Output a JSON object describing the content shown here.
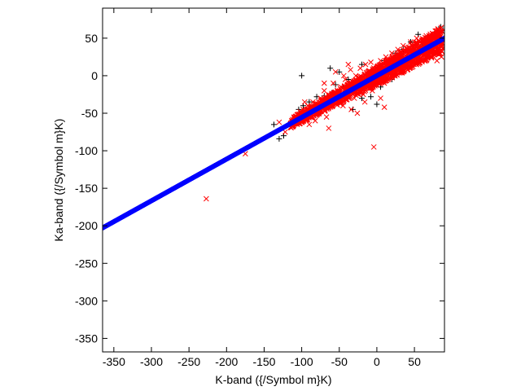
{
  "chart_data": {
    "type": "scatter",
    "title": "",
    "xlabel": "K-band ({/Symbol m}K)",
    "ylabel": "Ka-band ({/Symbol m}K)",
    "xlim": [
      -365,
      90
    ],
    "ylim": [
      -368,
      90
    ],
    "xticks": [
      -350,
      -300,
      -250,
      -200,
      -150,
      -100,
      -50,
      0,
      50
    ],
    "yticks": [
      50,
      0,
      -50,
      -100,
      -150,
      -200,
      -250,
      -300,
      -350
    ],
    "grid": false,
    "legend": "none",
    "series": [
      {
        "marker": "plus",
        "color": "#000000",
        "points": [
          [
            -137,
            -65
          ],
          [
            -130,
            -84
          ],
          [
            -124,
            -80
          ],
          [
            -110,
            -64
          ],
          [
            -104,
            -45
          ],
          [
            -98,
            -40
          ],
          [
            -90,
            -35
          ],
          [
            -85,
            -42
          ],
          [
            -80,
            -28
          ],
          [
            -75,
            -50
          ],
          [
            -70,
            -27
          ],
          [
            -60,
            -23
          ],
          [
            -55,
            -12
          ],
          [
            -100,
            0
          ],
          [
            -62,
            10
          ],
          [
            -45,
            -15
          ],
          [
            -38,
            -5
          ],
          [
            -32,
            -45
          ],
          [
            -28,
            -20
          ],
          [
            -20,
            -30
          ],
          [
            -15,
            -10
          ],
          [
            -8,
            -28
          ],
          [
            -2,
            5
          ],
          [
            5,
            -15
          ],
          [
            10,
            20
          ],
          [
            15,
            2
          ],
          [
            20,
            -5
          ],
          [
            25,
            30
          ],
          [
            30,
            10
          ],
          [
            35,
            35
          ],
          [
            40,
            20
          ],
          [
            45,
            45
          ],
          [
            50,
            30
          ],
          [
            55,
            55
          ],
          [
            60,
            40
          ],
          [
            65,
            50
          ],
          [
            70,
            45
          ],
          [
            75,
            55
          ],
          [
            80,
            50
          ],
          [
            85,
            65
          ],
          [
            88,
            60
          ],
          [
            -50,
            5
          ],
          [
            -65,
            -30
          ],
          [
            -20,
            15
          ],
          [
            0,
            -38
          ]
        ]
      },
      {
        "marker": "cross",
        "color": "#ff0000",
        "points": [
          [
            -227,
            -164
          ],
          [
            -175,
            -104
          ],
          [
            -130,
            -62
          ],
          [
            -122,
            -75
          ],
          [
            -110,
            -55
          ],
          [
            -105,
            -60
          ],
          [
            -98,
            -45
          ],
          [
            -92,
            -40
          ],
          [
            -90,
            -52
          ],
          [
            -85,
            -35
          ],
          [
            -82,
            -60
          ],
          [
            -80,
            -45
          ],
          [
            -75,
            -30
          ],
          [
            -72,
            -40
          ],
          [
            -70,
            -20
          ],
          [
            -67,
            -55
          ],
          [
            -65,
            -25
          ],
          [
            -60,
            -35
          ],
          [
            -58,
            -10
          ],
          [
            -55,
            -30
          ],
          [
            -55,
            5
          ],
          [
            -52,
            -20
          ],
          [
            -48,
            -15
          ],
          [
            -45,
            -40
          ],
          [
            -42,
            -5
          ],
          [
            -40,
            -25
          ],
          [
            -36,
            -10
          ],
          [
            -35,
            8
          ],
          [
            -32,
            -20
          ],
          [
            -30,
            -30
          ],
          [
            -28,
            0
          ],
          [
            -25,
            -15
          ],
          [
            -22,
            10
          ],
          [
            -20,
            -5
          ],
          [
            -18,
            -25
          ],
          [
            -15,
            15
          ],
          [
            -12,
            0
          ],
          [
            -10,
            -12
          ],
          [
            -6,
            -20
          ],
          [
            -5,
            5
          ],
          [
            -4,
            -95
          ],
          [
            0,
            10
          ],
          [
            2,
            -5
          ],
          [
            5,
            20
          ],
          [
            8,
            0
          ],
          [
            10,
            -10
          ],
          [
            12,
            25
          ],
          [
            15,
            5
          ],
          [
            18,
            15
          ],
          [
            20,
            30
          ],
          [
            22,
            10
          ],
          [
            25,
            20
          ],
          [
            28,
            35
          ],
          [
            30,
            15
          ],
          [
            33,
            25
          ],
          [
            35,
            40
          ],
          [
            38,
            30
          ],
          [
            40,
            20
          ],
          [
            43,
            38
          ],
          [
            45,
            45
          ],
          [
            48,
            30
          ],
          [
            50,
            40
          ],
          [
            53,
            50
          ],
          [
            55,
            35
          ],
          [
            58,
            45
          ],
          [
            60,
            30
          ],
          [
            63,
            40
          ],
          [
            65,
            50
          ],
          [
            68,
            38
          ],
          [
            70,
            45
          ],
          [
            72,
            35
          ],
          [
            75,
            40
          ],
          [
            78,
            30
          ],
          [
            80,
            20
          ],
          [
            83,
            35
          ],
          [
            86,
            25
          ],
          [
            -64,
            -70
          ],
          [
            -34,
            -45
          ],
          [
            -38,
            15
          ],
          [
            -90,
            -65
          ],
          [
            -70,
            -10
          ],
          [
            10,
            -42
          ],
          [
            5,
            -30
          ],
          [
            -8,
            18
          ],
          [
            -26,
            -50
          ],
          [
            -96,
            -35
          ],
          [
            -102,
            -48
          ],
          [
            -44,
            0
          ],
          [
            -16,
            -35
          ],
          [
            24,
            0
          ]
        ],
        "trend_band": {
          "x": [
            -115,
            88
          ],
          "center_slope": 0.555,
          "center_intercept": 0,
          "spread": 18
        }
      },
      {
        "marker": "dot",
        "color": "#0000ff",
        "line": {
          "x": [
            -365,
            90
          ],
          "slope": 0.5556,
          "intercept": 0
        }
      }
    ]
  }
}
